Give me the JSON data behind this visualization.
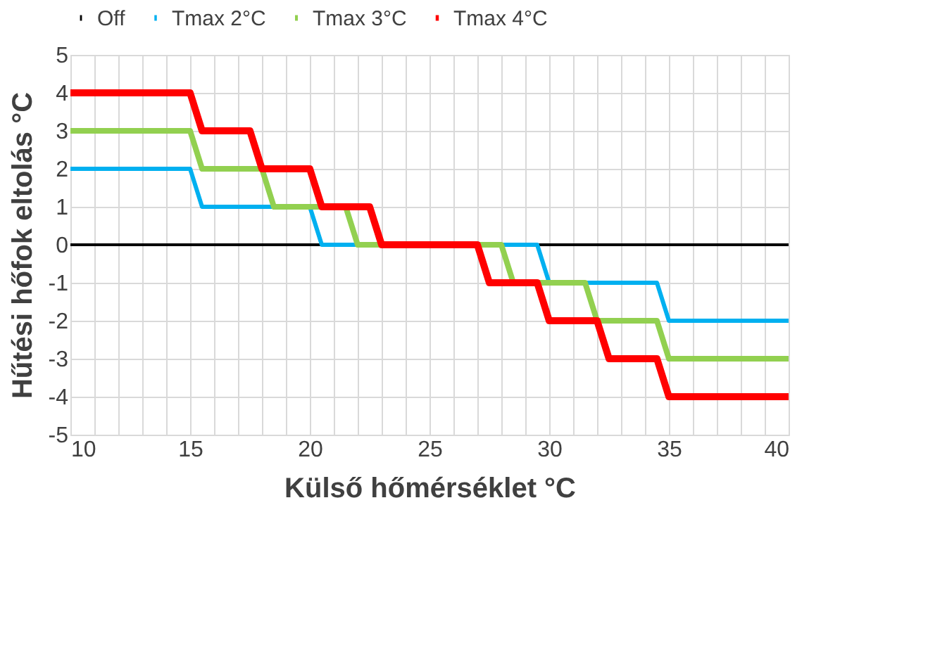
{
  "chart_data": {
    "type": "line",
    "xlabel": "Külső hőmérséklet °C",
    "ylabel": "Hűtési hőfok eltolás °C",
    "xlim": [
      10,
      40
    ],
    "ylim": [
      -5,
      5
    ],
    "yticks": [
      -5,
      -4,
      -3,
      -2,
      -1,
      0,
      1,
      2,
      3,
      4,
      5
    ],
    "xticks": [
      10,
      {
        "value": 11,
        "label": null
      },
      {
        "value": 12,
        "label": null
      },
      {
        "value": 13,
        "label": null
      },
      {
        "value": 14,
        "label": null
      },
      15,
      {
        "value": 16,
        "label": null
      },
      {
        "value": 17,
        "label": null
      },
      {
        "value": 18,
        "label": null
      },
      {
        "value": 19,
        "label": null
      },
      20,
      {
        "value": 21,
        "label": null
      },
      {
        "value": 22,
        "label": null
      },
      {
        "value": 23,
        "label": null
      },
      {
        "value": 24,
        "label": null
      },
      25,
      {
        "value": 26,
        "label": null
      },
      {
        "value": 27,
        "label": null
      },
      {
        "value": 28,
        "label": null
      },
      {
        "value": 29,
        "label": null
      },
      30,
      {
        "value": 31,
        "label": null
      },
      {
        "value": 32,
        "label": null
      },
      {
        "value": 33,
        "label": null
      },
      {
        "value": 34,
        "label": null
      },
      35,
      {
        "value": 36,
        "label": null
      },
      {
        "value": 37,
        "label": null
      },
      {
        "value": 38,
        "label": null
      },
      {
        "value": 39,
        "label": null
      },
      40
    ],
    "grid": true,
    "legend": "top",
    "marker": "none",
    "line_style": "solid",
    "series": [
      {
        "name": "Off",
        "color": "#000000",
        "x": [
          10,
          40
        ],
        "values": [
          0,
          0
        ]
      },
      {
        "name": "Tmax 2°C",
        "color": "#00b0f0",
        "x": [
          10,
          15,
          15.5,
          20,
          20.5,
          29.5,
          30,
          34.5,
          35,
          40
        ],
        "values": [
          2,
          2,
          1,
          1,
          0,
          0,
          -1,
          -1,
          -2,
          -2
        ]
      },
      {
        "name": "Tmax 3°C",
        "color": "#92d050",
        "x": [
          10,
          15,
          15.5,
          18,
          18.5,
          21.5,
          22,
          28,
          28.5,
          31.5,
          32,
          34.5,
          35,
          40
        ],
        "values": [
          3,
          3,
          2,
          2,
          1,
          1,
          0,
          0,
          -1,
          -1,
          -2,
          -2,
          -3,
          -3
        ]
      },
      {
        "name": "Tmax 4°C",
        "color": "#ff0000",
        "x": [
          10,
          15,
          15.5,
          17.5,
          18,
          20,
          20.5,
          22.5,
          23,
          27,
          27.5,
          29.5,
          30,
          32,
          32.5,
          34.5,
          35,
          40
        ],
        "values": [
          4,
          4,
          3,
          3,
          2,
          2,
          1,
          1,
          0,
          0,
          -1,
          -1,
          -2,
          -2,
          -3,
          -3,
          -4,
          -4
        ]
      }
    ]
  }
}
